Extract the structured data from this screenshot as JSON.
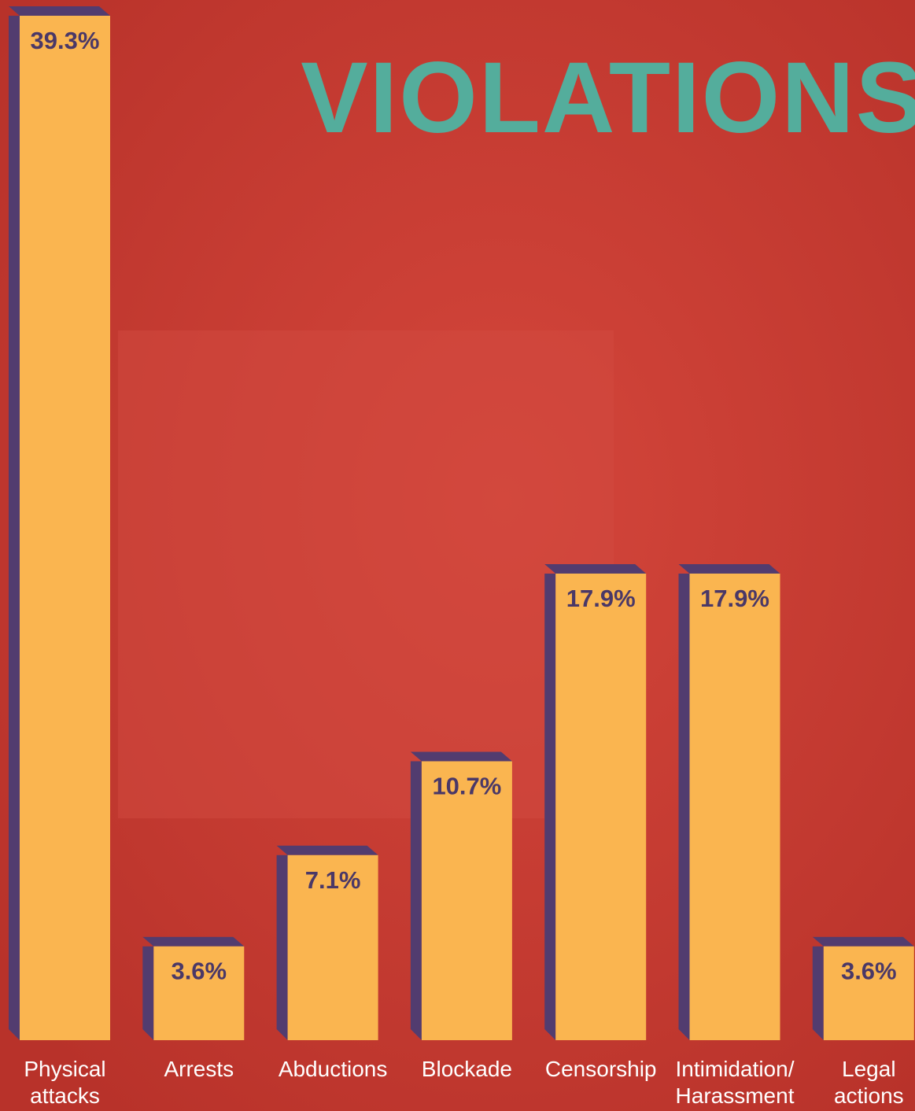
{
  "chart_data": {
    "type": "bar",
    "title": "VIOLATIONS",
    "categories": [
      "Physical\nattacks",
      "Arrests",
      "Abductions",
      "Blockade",
      "Censorship",
      "Intimidation/\nHarassment",
      "Legal\nactions"
    ],
    "values": [
      39.3,
      3.6,
      7.1,
      10.7,
      17.9,
      17.9,
      3.6
    ],
    "value_labels": [
      "39.3%",
      "3.6%",
      "7.1%",
      "10.7%",
      "17.9%",
      "17.9%",
      "3.6%"
    ],
    "color": "#fab550",
    "side_color": "#523c6f"
  }
}
